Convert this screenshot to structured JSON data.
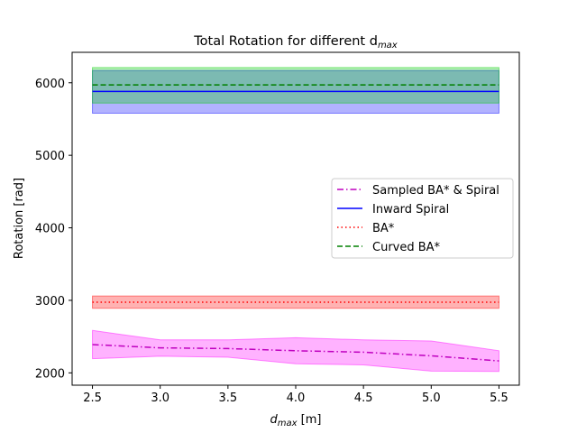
{
  "chart_data": {
    "type": "line",
    "title": "Total Rotation for different d",
    "title_subscript": "max",
    "xlabel": "d",
    "xlabel_subscript": "max",
    "xlabel_unit": " [m]",
    "ylabel": "Rotation [rad]",
    "xlim": [
      2.35,
      5.65
    ],
    "ylim": [
      1830,
      6420
    ],
    "xticks": [
      2.5,
      3.0,
      3.5,
      4.0,
      4.5,
      5.0,
      5.5
    ],
    "xtick_labels": [
      "2.5",
      "3.0",
      "3.5",
      "4.0",
      "4.5",
      "5.0",
      "5.5"
    ],
    "yticks": [
      2000,
      3000,
      4000,
      5000,
      6000
    ],
    "ytick_labels": [
      "2000",
      "3000",
      "4000",
      "5000",
      "6000"
    ],
    "grid": false,
    "legend_position": "center-right",
    "x": [
      2.5,
      3.0,
      3.5,
      4.0,
      4.5,
      5.0,
      5.5
    ],
    "series": [
      {
        "name": "Sampled BA* & Spiral",
        "color": "#bf00bf",
        "band_color": "#ff00ff",
        "linestyle": "dashdot",
        "values": [
          2390,
          2345,
          2335,
          2305,
          2285,
          2235,
          2165
        ],
        "lower": [
          2195,
          2230,
          2215,
          2125,
          2110,
          2025,
          2020
        ],
        "upper": [
          2585,
          2455,
          2455,
          2485,
          2455,
          2440,
          2305
        ]
      },
      {
        "name": "Inward Spiral",
        "color": "#0000ff",
        "band_color": "#0000ff",
        "linestyle": "solid",
        "values": [
          5880,
          5880,
          5880,
          5880,
          5880,
          5880,
          5880
        ],
        "lower": [
          5580,
          5580,
          5580,
          5580,
          5580,
          5580,
          5580
        ],
        "upper": [
          6170,
          6170,
          6170,
          6170,
          6170,
          6170,
          6170
        ]
      },
      {
        "name": "BA*",
        "color": "#ff0000",
        "band_color": "#ff0000",
        "linestyle": "dotted",
        "values": [
          2975,
          2975,
          2975,
          2975,
          2975,
          2975,
          2975
        ],
        "lower": [
          2890,
          2890,
          2890,
          2890,
          2890,
          2890,
          2890
        ],
        "upper": [
          3060,
          3060,
          3060,
          3060,
          3060,
          3060,
          3060
        ]
      },
      {
        "name": "Curved BA*",
        "color": "#008000",
        "band_color": "#00cc00",
        "linestyle": "dashed",
        "values": [
          5970,
          5970,
          5970,
          5970,
          5970,
          5970,
          5970
        ],
        "lower": [
          5720,
          5720,
          5720,
          5720,
          5720,
          5720,
          5720
        ],
        "upper": [
          6210,
          6210,
          6210,
          6210,
          6210,
          6210,
          6210
        ]
      }
    ]
  }
}
